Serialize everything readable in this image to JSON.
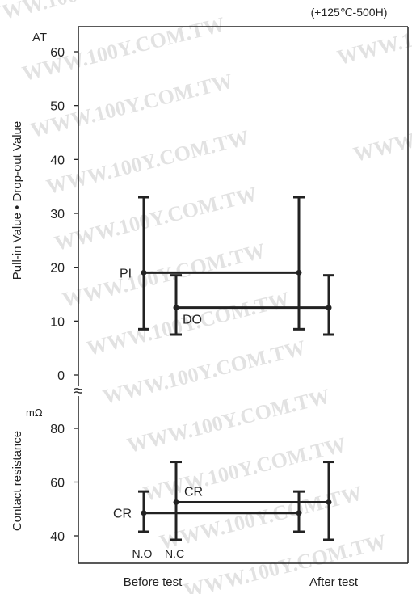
{
  "chart_data": {
    "type": "errorbar",
    "condition": "(+125℃-500H)",
    "categories": [
      "Before test",
      "After test"
    ],
    "watermark": "WWW.100Y.COM.TW",
    "panels": [
      {
        "id": "upper",
        "ylabel": "Pull-in Value • Drop-out Value",
        "unit": "AT",
        "ylim": [
          0,
          60
        ],
        "yticks": [
          0,
          10,
          20,
          30,
          40,
          50,
          60
        ],
        "series": [
          {
            "name": "PI",
            "points": [
              {
                "category": "Before test",
                "mean": 19,
                "min": 8.5,
                "max": 33
              },
              {
                "category": "After test",
                "mean": 19,
                "min": 8.5,
                "max": 33
              }
            ]
          },
          {
            "name": "DO",
            "points": [
              {
                "category": "Before test",
                "mean": 12.5,
                "min": 7.5,
                "max": 18.5
              },
              {
                "category": "After test",
                "mean": 12.5,
                "min": 7.5,
                "max": 18.5
              }
            ]
          }
        ]
      },
      {
        "id": "lower",
        "ylabel": "Contact resistance",
        "unit": "mΩ",
        "ylim": [
          35,
          85
        ],
        "yticks": [
          40,
          60,
          80
        ],
        "series": [
          {
            "name": "CR",
            "contact": "N.O",
            "points": [
              {
                "category": "Before test",
                "mean": 48.5,
                "min": 41.5,
                "max": 56.5
              },
              {
                "category": "After test",
                "mean": 48.5,
                "min": 41.5,
                "max": 56.5
              }
            ]
          },
          {
            "name": "CR",
            "contact": "N.C",
            "points": [
              {
                "category": "Before test",
                "mean": 52.5,
                "min": 38.5,
                "max": 67.5
              },
              {
                "category": "After test",
                "mean": 52.5,
                "min": 38.5,
                "max": 67.5
              }
            ]
          }
        ]
      }
    ],
    "bottom_labels": [
      "N.O",
      "N.C"
    ],
    "axis_break_symbol": "≈"
  }
}
